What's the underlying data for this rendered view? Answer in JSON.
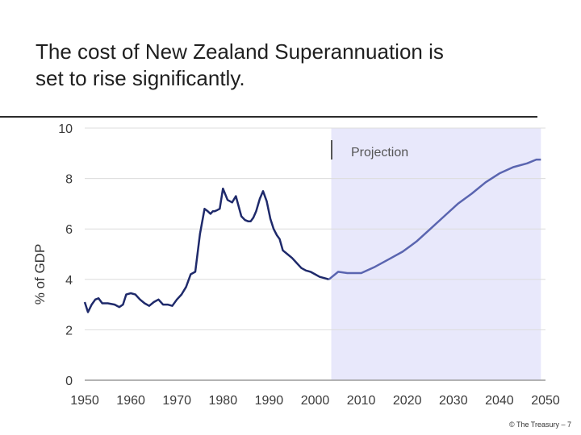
{
  "slide": {
    "title_line1": "The cost of New Zealand Superannuation is",
    "title_line2": "set to rise significantly.",
    "footer": "© The Treasury – 7"
  },
  "colors": {
    "historical_line": "#1f2a6b",
    "projection_line": "#5a65b0",
    "projection_band": "#e8e8fb",
    "grid": "#dcdcdc"
  },
  "chart_data": {
    "type": "line",
    "title": "",
    "xlabel": "",
    "ylabel": "% of GDP",
    "xlim": [
      1950,
      2050
    ],
    "ylim": [
      0,
      10
    ],
    "x_ticks": [
      "1950",
      "1960",
      "1970",
      "1980",
      "1990",
      "2000",
      "2010",
      "2020",
      "2030",
      "2040",
      "2050"
    ],
    "y_ticks": [
      "0",
      "2",
      "4",
      "6",
      "8",
      "10"
    ],
    "grid": "horizontal",
    "annotations": [
      {
        "text": "Projection",
        "from_x": 2003.5,
        "to_x": 2049
      }
    ],
    "series": [
      {
        "name": "",
        "x": [
          1950,
          1950.7,
          1951.5,
          1952.3,
          1953,
          1953.8,
          1955,
          1956.5,
          1957.5,
          1958.3,
          1959,
          1960,
          1961,
          1962,
          1963,
          1964,
          1965,
          1966,
          1967,
          1968,
          1969,
          1970,
          1971,
          1972,
          1973,
          1974,
          1975,
          1976,
          1976.7,
          1977.3,
          1977.8,
          1978.2,
          1978.8,
          1979.3,
          1980,
          1981,
          1982,
          1982.8,
          1983.4,
          1984,
          1984.8,
          1985.5,
          1986,
          1986.6,
          1987.2,
          1988,
          1988.7,
          1989.5,
          1990.3,
          1991,
          1991.7,
          1992.3,
          1993,
          1994,
          1995,
          1996,
          1997,
          1998,
          1999,
          2000,
          2001,
          2002,
          2003
        ],
        "values": [
          3.1,
          2.7,
          3.0,
          3.2,
          3.25,
          3.05,
          3.05,
          3.0,
          2.9,
          3.0,
          3.4,
          3.45,
          3.4,
          3.2,
          3.05,
          2.95,
          3.1,
          3.2,
          3.0,
          3.0,
          2.95,
          3.2,
          3.4,
          3.7,
          4.2,
          4.3,
          5.8,
          6.8,
          6.7,
          6.6,
          6.7,
          6.7,
          6.75,
          6.8,
          7.6,
          7.15,
          7.05,
          7.3,
          6.9,
          6.5,
          6.35,
          6.3,
          6.3,
          6.45,
          6.7,
          7.2,
          7.5,
          7.1,
          6.4,
          6.0,
          5.75,
          5.6,
          5.15,
          5.0,
          4.85,
          4.65,
          4.45,
          4.35,
          4.3,
          4.2,
          4.1,
          4.05,
          4.0
        ]
      },
      {
        "name": "Projection",
        "x": [
          2003,
          2005,
          2007,
          2010,
          2013,
          2016,
          2019,
          2022,
          2025,
          2028,
          2031,
          2034,
          2037,
          2040,
          2043,
          2046,
          2048,
          2049
        ],
        "values": [
          4.0,
          4.3,
          4.25,
          4.25,
          4.5,
          4.8,
          5.1,
          5.5,
          6.0,
          6.5,
          7.0,
          7.4,
          7.85,
          8.2,
          8.45,
          8.6,
          8.75,
          8.75
        ]
      }
    ]
  }
}
